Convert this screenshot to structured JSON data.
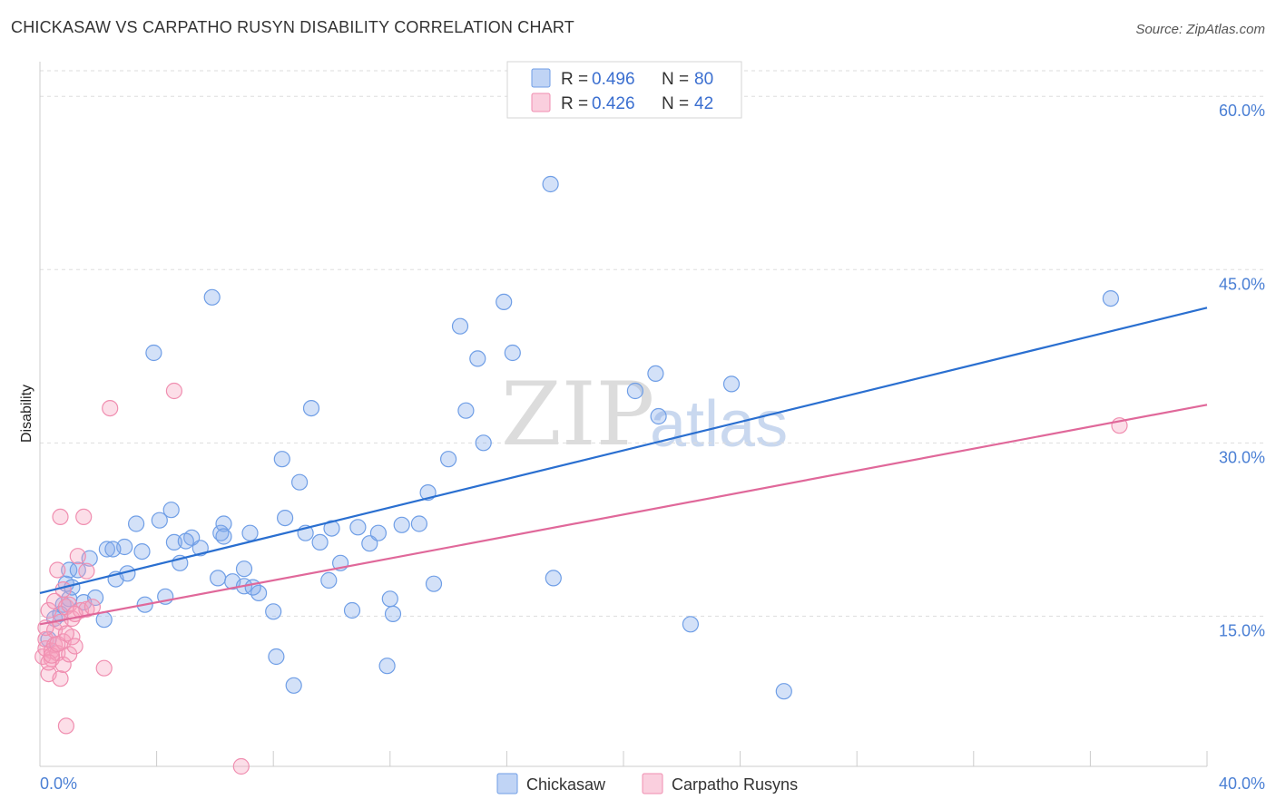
{
  "header": {
    "title": "CHICKASAW VS CARPATHO RUSYN DISABILITY CORRELATION CHART",
    "source": "Source: ZipAtlas.com"
  },
  "watermark": {
    "zip": "ZIP",
    "atlas": "atlas"
  },
  "colors": {
    "blue": "#6f9ee6",
    "blue_line": "#2a6fd0",
    "pink": "#f08eb0",
    "pink_line": "#e0689a",
    "tick": "#4a7fd4"
  },
  "legend": {
    "rows": [
      {
        "r_label": "R =",
        "r_value": "0.496",
        "n_label": "N =",
        "n_value": "80"
      },
      {
        "r_label": "R =",
        "r_value": "0.426",
        "n_label": "N =",
        "n_value": "42"
      }
    ]
  },
  "bottom_legend": [
    "Chickasaw",
    "Carpatho Rusyns"
  ],
  "chart_data": {
    "type": "scatter",
    "title": "CHICKASAW VS CARPATHO RUSYN DISABILITY CORRELATION CHART",
    "xlabel": "",
    "ylabel": "Disability",
    "xlim": [
      0,
      40
    ],
    "ylim": [
      2,
      63
    ],
    "x_tick_labels": [
      "0.0%",
      "40.0%"
    ],
    "y_ticks": [
      15,
      30,
      45,
      60
    ],
    "y_tick_labels": [
      "15.0%",
      "30.0%",
      "45.0%",
      "60.0%"
    ],
    "grid": true,
    "legend_position": "top-center",
    "series": [
      {
        "name": "Chickasaw",
        "R": 0.496,
        "N": 80,
        "trend": {
          "x": [
            0,
            40
          ],
          "y": [
            17.0,
            41.7
          ]
        },
        "points": [
          [
            0.3,
            13.0
          ],
          [
            0.5,
            14.8
          ],
          [
            0.7,
            15.2
          ],
          [
            0.8,
            16.0
          ],
          [
            0.9,
            17.8
          ],
          [
            1.0,
            19.0
          ],
          [
            1.0,
            16.5
          ],
          [
            1.1,
            17.5
          ],
          [
            1.3,
            19.0
          ],
          [
            1.5,
            16.2
          ],
          [
            1.7,
            20.0
          ],
          [
            1.9,
            16.6
          ],
          [
            2.2,
            14.7
          ],
          [
            2.3,
            20.8
          ],
          [
            2.6,
            18.2
          ],
          [
            2.9,
            21.0
          ],
          [
            3.3,
            23.0
          ],
          [
            3.5,
            20.6
          ],
          [
            3.6,
            16.0
          ],
          [
            3.9,
            37.8
          ],
          [
            4.1,
            23.3
          ],
          [
            4.3,
            16.7
          ],
          [
            4.5,
            24.2
          ],
          [
            4.6,
            21.4
          ],
          [
            4.8,
            19.6
          ],
          [
            5.2,
            21.8
          ],
          [
            5.5,
            20.9
          ],
          [
            5.9,
            42.6
          ],
          [
            6.1,
            18.3
          ],
          [
            6.2,
            22.2
          ],
          [
            6.3,
            23.0
          ],
          [
            6.6,
            18.0
          ],
          [
            7.0,
            17.6
          ],
          [
            7.0,
            19.1
          ],
          [
            7.2,
            22.2
          ],
          [
            7.5,
            17.0
          ],
          [
            8.0,
            15.4
          ],
          [
            8.1,
            11.5
          ],
          [
            8.3,
            28.6
          ],
          [
            8.4,
            23.5
          ],
          [
            8.7,
            9.0
          ],
          [
            8.9,
            26.6
          ],
          [
            9.1,
            22.2
          ],
          [
            9.3,
            33.0
          ],
          [
            9.6,
            21.4
          ],
          [
            9.9,
            18.1
          ],
          [
            10.3,
            19.6
          ],
          [
            10.7,
            15.5
          ],
          [
            10.9,
            22.7
          ],
          [
            11.3,
            21.3
          ],
          [
            11.6,
            22.2
          ],
          [
            11.9,
            10.7
          ],
          [
            12.0,
            16.5
          ],
          [
            12.1,
            15.2
          ],
          [
            12.4,
            22.9
          ],
          [
            13.0,
            23.0
          ],
          [
            13.3,
            25.7
          ],
          [
            13.5,
            17.8
          ],
          [
            14.0,
            28.6
          ],
          [
            14.4,
            40.1
          ],
          [
            14.6,
            32.8
          ],
          [
            15.0,
            37.3
          ],
          [
            15.2,
            30.0
          ],
          [
            15.9,
            42.2
          ],
          [
            16.2,
            37.8
          ],
          [
            17.5,
            52.4
          ],
          [
            17.6,
            18.3
          ],
          [
            20.4,
            34.5
          ],
          [
            21.1,
            36.0
          ],
          [
            21.2,
            32.3
          ],
          [
            22.3,
            14.3
          ],
          [
            23.7,
            35.1
          ],
          [
            25.5,
            8.5
          ],
          [
            36.7,
            42.5
          ],
          [
            2.5,
            20.8
          ],
          [
            5.0,
            21.5
          ],
          [
            7.3,
            17.5
          ],
          [
            10.0,
            22.6
          ],
          [
            6.3,
            21.9
          ],
          [
            3.0,
            18.7
          ]
        ]
      },
      {
        "name": "Carpatho Rusyns",
        "R": 0.426,
        "N": 42,
        "trend": {
          "x": [
            0,
            40
          ],
          "y": [
            14.3,
            33.3
          ]
        },
        "points": [
          [
            0.1,
            11.5
          ],
          [
            0.2,
            12.2
          ],
          [
            0.2,
            13.0
          ],
          [
            0.3,
            10.0
          ],
          [
            0.3,
            15.5
          ],
          [
            0.4,
            11.3
          ],
          [
            0.4,
            12.0
          ],
          [
            0.5,
            12.5
          ],
          [
            0.5,
            13.8
          ],
          [
            0.5,
            16.3
          ],
          [
            0.6,
            11.8
          ],
          [
            0.6,
            19.0
          ],
          [
            0.7,
            23.6
          ],
          [
            0.7,
            14.5
          ],
          [
            0.7,
            9.6
          ],
          [
            0.8,
            12.8
          ],
          [
            0.8,
            17.3
          ],
          [
            0.8,
            10.8
          ],
          [
            0.9,
            15.8
          ],
          [
            0.9,
            5.5
          ],
          [
            1.0,
            11.7
          ],
          [
            1.0,
            16.0
          ],
          [
            1.1,
            13.2
          ],
          [
            1.1,
            14.8
          ],
          [
            1.2,
            12.4
          ],
          [
            1.3,
            20.2
          ],
          [
            1.4,
            15.5
          ],
          [
            1.5,
            23.6
          ],
          [
            1.6,
            15.6
          ],
          [
            1.6,
            18.9
          ],
          [
            2.2,
            10.5
          ],
          [
            2.4,
            33.0
          ],
          [
            4.6,
            34.5
          ],
          [
            6.9,
            2.0
          ],
          [
            0.3,
            11.0
          ],
          [
            0.4,
            11.6
          ],
          [
            0.6,
            12.6
          ],
          [
            0.9,
            13.5
          ],
          [
            0.2,
            14.0
          ],
          [
            1.2,
            15.2
          ],
          [
            1.8,
            15.8
          ],
          [
            37.0,
            31.5
          ]
        ]
      }
    ]
  }
}
